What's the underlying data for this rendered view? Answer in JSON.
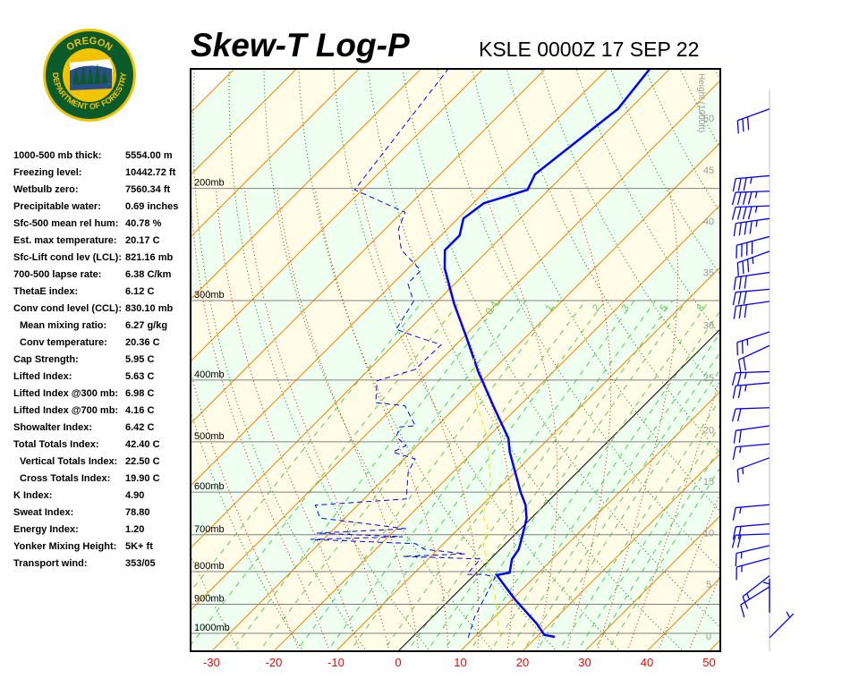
{
  "header": {
    "title": "Skew-T Log-P",
    "station": "KSLE 0000Z 17 SEP 22"
  },
  "logo": {
    "top_text": "OREGON",
    "bottom_text": "DEPARTMENT OF FORESTRY",
    "colors": {
      "green": "#0b5a2a",
      "gold": "#f2c400"
    }
  },
  "stats": [
    {
      "label": "1000-500 mb thick:",
      "value": "5554.00 m"
    },
    {
      "label": "Freezing level:",
      "value": "10442.72 ft"
    },
    {
      "label": "Wetbulb zero:",
      "value": "7560.34 ft"
    },
    {
      "label": "Precipitable water:",
      "value": "0.69 inches"
    },
    {
      "label": "Sfc-500 mean rel hum:",
      "value": "40.78 %"
    },
    {
      "label": "Est. max temperature:",
      "value": "20.17 C"
    },
    {
      "label": "Sfc-Lift cond lev (LCL):",
      "value": "821.16 mb"
    },
    {
      "label": "700-500 lapse rate:",
      "value": "6.38 C/km"
    },
    {
      "label": "ThetaE index:",
      "value": "6.12 C"
    },
    {
      "label": "Conv cond level (CCL):",
      "value": "830.10 mb"
    },
    {
      "label": "Mean mixing ratio:",
      "value": "6.27 g/kg",
      "indent": true
    },
    {
      "label": "Conv temperature:",
      "value": "20.36 C",
      "indent": true
    },
    {
      "label": "Cap Strength:",
      "value": "5.95 C"
    },
    {
      "label": "Lifted Index:",
      "value": "5.63 C"
    },
    {
      "label": "Lifted Index @300 mb:",
      "value": "6.98 C"
    },
    {
      "label": "Lifted Index @700 mb:",
      "value": "4.16 C"
    },
    {
      "label": "Showalter Index:",
      "value": "6.42 C"
    },
    {
      "label": "Total Totals Index:",
      "value": "42.40 C"
    },
    {
      "label": "Vertical Totals Index:",
      "value": "22.50 C",
      "indent": true
    },
    {
      "label": "Cross Totals Index:",
      "value": "19.90 C",
      "indent": true
    },
    {
      "label": "K Index:",
      "value": "4.90"
    },
    {
      "label": "Sweat Index:",
      "value": "78.80"
    },
    {
      "label": "Energy Index:",
      "value": "1.20"
    },
    {
      "label": "Yonker Mixing Height:",
      "value": "5K+ ft"
    },
    {
      "label": "Transport wind:",
      "value": "353/05"
    }
  ],
  "chart_data": {
    "type": "line",
    "title": "Skew-T Log-P",
    "x_axis": {
      "quantity": "temperature (C)",
      "ticks": [
        -30,
        -20,
        -10,
        0,
        10,
        20,
        30,
        40,
        50
      ],
      "skewed": true
    },
    "y_axis": {
      "quantity": "pressure (mb)",
      "scale": "log",
      "range_mb": [
        1067,
        130
      ],
      "ticks": [
        {
          "p": 1000,
          "label": "1000mb"
        },
        {
          "p": 900,
          "label": "900mb"
        },
        {
          "p": 800,
          "label": "800mb"
        },
        {
          "p": 700,
          "label": "700mb"
        },
        {
          "p": 600,
          "label": "600mb"
        },
        {
          "p": 500,
          "label": "500mb"
        },
        {
          "p": 400,
          "label": "400mb"
        },
        {
          "p": 300,
          "label": "300mb"
        },
        {
          "p": 200,
          "label": "200mb"
        }
      ]
    },
    "height_axis": {
      "label": "Height (1000ft)",
      "ticks": [
        {
          "ft": 0,
          "p": 1010
        },
        {
          "ft": 5,
          "p": 837
        },
        {
          "ft": 10,
          "p": 695
        },
        {
          "ft": 15,
          "p": 577
        },
        {
          "ft": 20,
          "p": 479
        },
        {
          "ft": 25,
          "p": 396
        },
        {
          "ft": 30,
          "p": 328
        },
        {
          "ft": 35,
          "p": 271
        },
        {
          "ft": 40,
          "p": 225
        },
        {
          "ft": 45,
          "p": 187
        },
        {
          "ft": 50,
          "p": 155
        }
      ]
    },
    "mixing_ratio_labels": {
      "p": 310,
      "values": [
        "0.4",
        "1",
        "2",
        "3",
        "5",
        "8"
      ]
    },
    "mixing_ratio_lines": [
      0.1,
      0.2,
      0.4,
      0.6,
      1,
      1.5,
      2,
      3,
      4,
      5,
      6,
      8,
      10,
      12,
      14,
      16,
      20,
      24,
      28,
      32
    ],
    "isotherm_interval": 10,
    "colors": {
      "temperature": "#0000ff",
      "dewpoint": "#0000ff",
      "wetbulb": "#e8e800",
      "isotherm": "#ff8000",
      "zero_isotherm": "#000000",
      "dry_adiabat": "#008000",
      "moist_adiabat": "#ff0000",
      "mixing_ratio": "#55cc55",
      "band_a": "#fffde8",
      "band_b": "#effff0",
      "axis_labels": "#ff0000",
      "pressure_lines": "#808080"
    },
    "series": [
      {
        "key": "temperature",
        "style": "solid",
        "points": [
          [
            1013,
            22.9
          ],
          [
            1006,
            20.9
          ],
          [
            965,
            17.8
          ],
          [
            884,
            10.4
          ],
          [
            810,
            3.6
          ],
          [
            803,
            5.3
          ],
          [
            765,
            3.5
          ],
          [
            738,
            3.0
          ],
          [
            709,
            1.7
          ],
          [
            660,
            -0.7
          ],
          [
            629,
            -3.0
          ],
          [
            600,
            -5.9
          ],
          [
            519,
            -14.1
          ],
          [
            494,
            -16.5
          ],
          [
            441,
            -23.9
          ],
          [
            388,
            -32.1
          ],
          [
            340,
            -40.0
          ],
          [
            304,
            -46.8
          ],
          [
            267,
            -54.1
          ],
          [
            250,
            -57.0
          ],
          [
            237,
            -57.0
          ],
          [
            223,
            -59.1
          ],
          [
            211,
            -58.3
          ],
          [
            201,
            -53.4
          ],
          [
            190,
            -54.7
          ],
          [
            150,
            -51.9
          ],
          [
            130,
            -53.2
          ]
        ]
      },
      {
        "key": "dewpoint",
        "style": "dashed",
        "points": [
          [
            1016,
            9.1
          ],
          [
            943,
            6.8
          ],
          [
            816,
            3.7
          ],
          [
            808,
            1.4
          ],
          [
            808,
            -1.3
          ],
          [
            764,
            -1.6
          ],
          [
            757,
            -14.5
          ],
          [
            750,
            -4.9
          ],
          [
            738,
            -12.1
          ],
          [
            723,
            -14.5
          ],
          [
            712,
            -32.1
          ],
          [
            705,
            -17.7
          ],
          [
            696,
            -32.1
          ],
          [
            685,
            -18.4
          ],
          [
            659,
            -34.0
          ],
          [
            629,
            -36.8
          ],
          [
            615,
            -23.2
          ],
          [
            558,
            -27.2
          ],
          [
            532,
            -28.2
          ],
          [
            519,
            -32.9
          ],
          [
            507,
            -31.8
          ],
          [
            491,
            -34.8
          ],
          [
            474,
            -35.8
          ],
          [
            472,
            -33.5
          ],
          [
            439,
            -38.4
          ],
          [
            434,
            -43.6
          ],
          [
            401,
            -46.9
          ],
          [
            385,
            -42.6
          ],
          [
            352,
            -42.4
          ],
          [
            341,
            -48.1
          ],
          [
            333,
            -52.1
          ],
          [
            301,
            -53.8
          ],
          [
            282,
            -57.6
          ],
          [
            269,
            -57.6
          ],
          [
            250,
            -64.0
          ],
          [
            232,
            -67.8
          ],
          [
            218,
            -69.5
          ],
          [
            201,
            -81.2
          ],
          [
            130,
            -85.6
          ]
        ]
      },
      {
        "key": "wetbulb",
        "style": "dashed",
        "points": [
          [
            1006,
            13.7
          ],
          [
            870,
            6.5
          ],
          [
            803,
            2.2
          ],
          [
            728,
            -3.3
          ],
          [
            682,
            -5.5
          ],
          [
            653,
            -8.2
          ],
          [
            580,
            -12.2
          ],
          [
            494,
            -19.9
          ],
          [
            429,
            -28.1
          ],
          [
            364,
            -35.7
          ]
        ]
      }
    ],
    "wind_barbs": [
      {
        "p": 150,
        "dir": 250,
        "kt": 30
      },
      {
        "p": 191,
        "dir": 265,
        "kt": 35
      },
      {
        "p": 202,
        "dir": 268,
        "kt": 45
      },
      {
        "p": 213,
        "dir": 268,
        "kt": 45
      },
      {
        "p": 223,
        "dir": 262,
        "kt": 45
      },
      {
        "p": 238,
        "dir": 255,
        "kt": 40
      },
      {
        "p": 251,
        "dir": 250,
        "kt": 35
      },
      {
        "p": 271,
        "dir": 262,
        "kt": 30
      },
      {
        "p": 288,
        "dir": 265,
        "kt": 30
      },
      {
        "p": 301,
        "dir": 262,
        "kt": 30
      },
      {
        "p": 336,
        "dir": 252,
        "kt": 25
      },
      {
        "p": 353,
        "dir": 245,
        "kt": 20
      },
      {
        "p": 388,
        "dir": 268,
        "kt": 25
      },
      {
        "p": 404,
        "dir": 265,
        "kt": 25
      },
      {
        "p": 442,
        "dir": 268,
        "kt": 20
      },
      {
        "p": 472,
        "dir": 262,
        "kt": 20
      },
      {
        "p": 504,
        "dir": 265,
        "kt": 15
      },
      {
        "p": 530,
        "dir": 250,
        "kt": 15
      },
      {
        "p": 628,
        "dir": 265,
        "kt": 15
      },
      {
        "p": 673,
        "dir": 265,
        "kt": 20
      },
      {
        "p": 698,
        "dir": 268,
        "kt": 20
      },
      {
        "p": 728,
        "dir": 257,
        "kt": 15
      },
      {
        "p": 762,
        "dir": 255,
        "kt": 15
      },
      {
        "p": 812,
        "dir": 232,
        "kt": 15
      },
      {
        "p": 845,
        "dir": 238,
        "kt": 10
      },
      {
        "p": 928,
        "dir": 360,
        "kt": 5
      },
      {
        "p": 1016,
        "dir": 45,
        "kt": 3
      }
    ]
  }
}
